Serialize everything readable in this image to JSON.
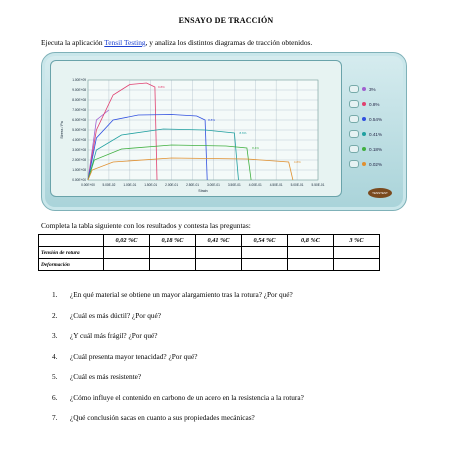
{
  "document": {
    "title": "ENSAYO DE TRACCIÓN",
    "intro_before": "Ejecuta la aplicación ",
    "intro_link": "Tensil Testing",
    "intro_after": ", y analiza los distintos diagramas de tracción obtenidos.",
    "table_intro": "Completa la tabla siguiente con los resultados y contesta las preguntas:"
  },
  "table": {
    "headers": [
      "0,02 %C",
      "0,18 %C",
      "0,41 %C",
      "0,54 %C",
      "0,8 %C",
      "3 %C"
    ],
    "rows": [
      {
        "label": "Tensión de rotura"
      },
      {
        "label": "Deformación"
      }
    ]
  },
  "questions": [
    {
      "num": "1.",
      "text": "¿En qué material se obtiene un mayor alargamiento tras la rotura? ¿Por qué?"
    },
    {
      "num": "2.",
      "text": "¿Cuál es más dúctil? ¿Por qué?"
    },
    {
      "num": "3.",
      "text": "¿Y cuál más frágil? ¿Por qué?"
    },
    {
      "num": "4.",
      "text": "¿Cuál presenta mayor tenacidad? ¿Por qué?"
    },
    {
      "num": "5.",
      "text": "¿Cuál es más resistente?"
    },
    {
      "num": "6.",
      "text": "¿Cómo influye el contenido en carbono de un acero en la resistencia a la rotura?"
    },
    {
      "num": "7.",
      "text": "¿Qué conclusión sacas en cuanto a sus propiedades mecánicas?"
    }
  ],
  "simulator": {
    "logo_text": "TENSTEST",
    "legend": [
      {
        "label": "3%",
        "color": "#a060d0"
      },
      {
        "label": "0.8%",
        "color": "#e04070"
      },
      {
        "label": "0.54%",
        "color": "#3050e0"
      },
      {
        "label": "0.41%",
        "color": "#20a0a0"
      },
      {
        "label": "0.18%",
        "color": "#40b040"
      },
      {
        "label": "0.02%",
        "color": "#e09030"
      }
    ]
  },
  "chart_data": {
    "type": "line",
    "title": "",
    "xlabel": "Strain",
    "ylabel": "Stress / Pa",
    "xlim": [
      0,
      0.55
    ],
    "ylim": [
      0,
      1000000000
    ],
    "x_ticks": [
      "0.00E+00",
      "5.00E-02",
      "1.00E-01",
      "1.50E-01",
      "2.00E-01",
      "2.50E-01",
      "3.00E-01",
      "3.50E-01",
      "4.00E-01",
      "4.50E-01",
      "5.00E-01",
      "5.50E-01"
    ],
    "y_ticks": [
      "0.00E+00",
      "1.00E+08",
      "2.00E+08",
      "3.00E+08",
      "4.00E+08",
      "5.00E+08",
      "6.00E+08",
      "7.00E+08",
      "8.00E+08",
      "9.00E+08",
      "1.00E+09"
    ],
    "grid": true,
    "series": [
      {
        "name": "3%",
        "color": "#a060d0",
        "x": [
          0,
          0.02,
          0.05
        ],
        "y": [
          0,
          600000000,
          700000000
        ],
        "end_label": ""
      },
      {
        "name": "0.8%",
        "color": "#e04070",
        "x": [
          0,
          0.02,
          0.06,
          0.1,
          0.14,
          0.16,
          0.165
        ],
        "y": [
          0,
          500000000,
          850000000,
          955000000,
          970000000,
          930000000,
          0
        ],
        "end_label": "9.8%"
      },
      {
        "name": "0.54%",
        "color": "#3050e0",
        "x": [
          0,
          0.02,
          0.06,
          0.12,
          0.2,
          0.26,
          0.28,
          0.285
        ],
        "y": [
          0,
          420000000,
          600000000,
          650000000,
          655000000,
          640000000,
          600000000,
          0
        ],
        "end_label": "8.8%"
      },
      {
        "name": "0.41%",
        "color": "#20a0a0",
        "x": [
          0,
          0.02,
          0.08,
          0.18,
          0.28,
          0.35,
          0.36
        ],
        "y": [
          0,
          300000000,
          450000000,
          510000000,
          500000000,
          470000000,
          0
        ],
        "end_label": "8.6%"
      },
      {
        "name": "0.18%",
        "color": "#40b040",
        "x": [
          0,
          0.015,
          0.08,
          0.2,
          0.33,
          0.38,
          0.39
        ],
        "y": [
          0,
          200000000,
          310000000,
          350000000,
          340000000,
          320000000,
          0
        ],
        "end_label": "8.4%"
      },
      {
        "name": "0.02%",
        "color": "#e09030",
        "x": [
          0,
          0.01,
          0.06,
          0.2,
          0.38,
          0.48,
          0.49
        ],
        "y": [
          0,
          100000000,
          180000000,
          220000000,
          210000000,
          180000000,
          0
        ],
        "end_label": "4.8%"
      }
    ]
  }
}
